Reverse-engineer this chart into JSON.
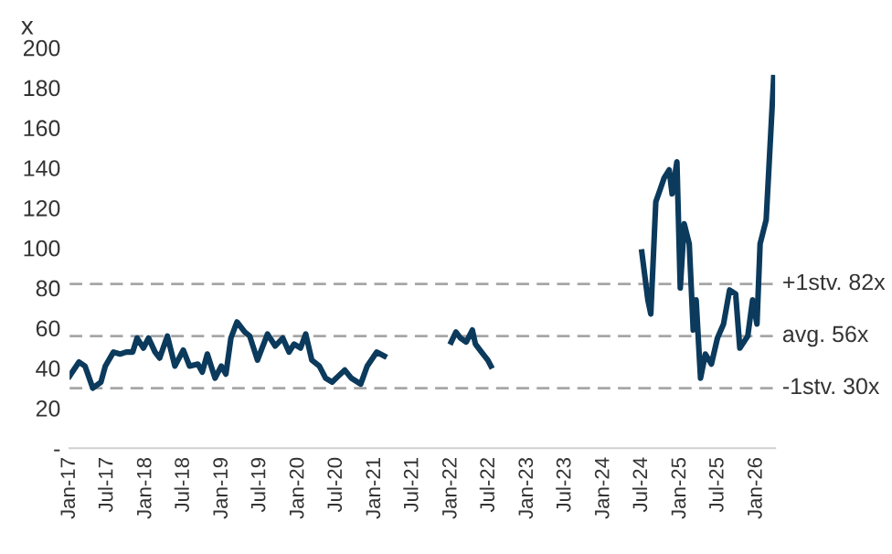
{
  "chart_data": {
    "type": "line",
    "ylabel": "x",
    "x": [
      "2017-01-01",
      "2017-02-15",
      "2017-03-16",
      "2017-04-22",
      "2017-05-31",
      "2017-06-21",
      "2017-07-30",
      "2017-08-30",
      "2017-09-29",
      "2017-10-30",
      "2017-11-20",
      "2017-12-20",
      "2018-01-14",
      "2018-02-14",
      "2018-03-08",
      "2018-04-14",
      "2018-05-20",
      "2018-06-29",
      "2018-07-29",
      "2018-09-07",
      "2018-09-28",
      "2018-10-22",
      "2018-11-28",
      "2018-12-28",
      "2019-01-19",
      "2019-02-12",
      "2019-03-13",
      "2019-04-19",
      "2019-05-13",
      "2019-06-19",
      "2019-08-06",
      "2019-09-12",
      "2019-10-18",
      "2019-11-17",
      "2019-12-11",
      "2020-01-11",
      "2020-02-05",
      "2020-03-05",
      "2020-04-10",
      "2020-05-10",
      "2020-06-10",
      "2020-07-10",
      "2020-08-10",
      "2020-09-10",
      "2020-10-25",
      "2020-11-25",
      "2021-01-10",
      "2021-02-15",
      "2021-07-01",
      "2022-01-01",
      "2022-01-24",
      "2022-02-14",
      "2022-03-14",
      "2022-04-12",
      "2022-04-27",
      "2022-05-26",
      "2022-06-25",
      "2022-07-10",
      "2023-07-01",
      "2024-07-01",
      "2024-07-30",
      "2024-08-13",
      "2024-09-06",
      "2024-09-26",
      "2024-10-16",
      "2024-11-09",
      "2024-11-23",
      "2024-12-16",
      "2025-01-01",
      "2025-01-20",
      "2025-02-13",
      "2025-03-04",
      "2025-03-18",
      "2025-04-08",
      "2025-05-01",
      "2025-05-30",
      "2025-06-28",
      "2025-07-27",
      "2025-08-25",
      "2025-09-23",
      "2025-10-13",
      "2025-11-20",
      "2025-12-13",
      "2026-01-03",
      "2026-01-18",
      "2026-02-16",
      "2026-03-24"
    ],
    "series": [
      {
        "color": "#0b3a5c",
        "values": [
          36,
          43,
          41,
          30,
          33,
          41,
          48,
          47,
          48,
          48,
          55,
          50,
          55,
          48,
          45,
          56,
          41,
          49,
          41,
          42,
          38,
          47,
          35,
          41,
          37,
          55,
          63,
          58,
          56,
          44,
          57,
          51,
          55,
          48,
          52,
          50,
          57,
          44,
          41,
          35,
          33,
          36,
          39,
          35,
          32,
          41,
          48,
          46,
          null,
          53,
          58,
          55,
          53,
          59,
          52,
          48,
          44,
          41,
          null,
          98,
          74,
          67,
          123,
          129,
          135,
          139,
          127,
          143,
          80,
          112,
          102,
          59,
          74,
          35,
          47,
          42,
          55,
          62,
          79,
          77,
          50,
          56,
          74,
          62,
          102,
          114,
          185
        ]
      }
    ],
    "xlim": [
      "2017-01-01",
      "2026-03-31"
    ],
    "xticks": [
      {
        "value": "2017-01-01",
        "label": "Jan-17"
      },
      {
        "value": "2017-07-01",
        "label": "Jul-17"
      },
      {
        "value": "2018-01-01",
        "label": "Jan-18"
      },
      {
        "value": "2018-07-01",
        "label": "Jul-18"
      },
      {
        "value": "2019-01-01",
        "label": "Jan-19"
      },
      {
        "value": "2019-07-01",
        "label": "Jul-19"
      },
      {
        "value": "2020-01-01",
        "label": "Jan-20"
      },
      {
        "value": "2020-07-01",
        "label": "Jul-20"
      },
      {
        "value": "2021-01-01",
        "label": "Jan-21"
      },
      {
        "value": "2021-07-01",
        "label": "Jul-21"
      },
      {
        "value": "2022-01-01",
        "label": "Jan-22"
      },
      {
        "value": "2022-07-01",
        "label": "Jul-22"
      },
      {
        "value": "2023-01-01",
        "label": "Jan-23"
      },
      {
        "value": "2023-07-01",
        "label": "Jul-23"
      },
      {
        "value": "2024-01-01",
        "label": "Jan-24"
      },
      {
        "value": "2024-07-01",
        "label": "Jul-24"
      },
      {
        "value": "2025-01-01",
        "label": "Jan-25"
      },
      {
        "value": "2025-07-01",
        "label": "Jul-25"
      },
      {
        "value": "2026-01-01",
        "label": "Jan-26"
      }
    ],
    "ylim": [
      0,
      200
    ],
    "yticks": [
      {
        "value": 0,
        "label": "-"
      },
      20,
      40,
      60,
      80,
      100,
      120,
      140,
      160,
      180,
      200
    ],
    "ref_lines": [
      {
        "axis": "y",
        "value": 82,
        "label": "+1stv. 82x",
        "color": "#a6a6a6",
        "line_style": "dashed"
      },
      {
        "axis": "y",
        "value": 56,
        "label": "avg. 56x",
        "color": "#a6a6a6",
        "line_style": "dashed"
      },
      {
        "axis": "y",
        "value": 30,
        "label": "-1stv. 30x",
        "color": "#a6a6a6",
        "line_style": "dashed"
      }
    ],
    "grid": false,
    "legend": false,
    "marker": "none",
    "line_style": "solid"
  }
}
